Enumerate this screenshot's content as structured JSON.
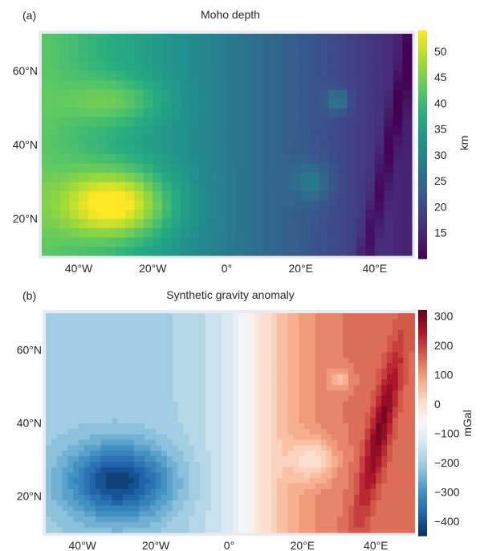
{
  "chart_data": [
    {
      "panel_label": "(a)",
      "type": "heatmap",
      "title": "Moho depth",
      "xlabel": "",
      "ylabel": "",
      "x_tick_labels": [
        "40°W",
        "20°W",
        "0°",
        "20°E",
        "40°E"
      ],
      "x_ticks": [
        -40,
        -20,
        0,
        20,
        40
      ],
      "y_tick_labels": [
        "20°N",
        "40°N",
        "60°N"
      ],
      "y_ticks": [
        20,
        40,
        60
      ],
      "xlim": [
        -50,
        50
      ],
      "ylim": [
        10,
        70
      ],
      "colormap": "viridis",
      "colorbar": {
        "label": "km",
        "range": [
          10,
          54
        ],
        "ticks": [
          15,
          20,
          25,
          30,
          35,
          40,
          45,
          50
        ],
        "tick_labels": [
          "15",
          "20",
          "25",
          "30",
          "35",
          "40",
          "45",
          "50"
        ]
      },
      "field": {
        "base": "depth decreases west to east, ~43 km at 50°W to ~14 km at 40°E",
        "features": [
          {
            "kind": "maximum",
            "lon": -30,
            "lat": 25,
            "value": 54
          },
          {
            "kind": "local maximum",
            "lon": -30,
            "lat": 52,
            "value": 38
          },
          {
            "kind": "local maximum",
            "lon": 23,
            "lat": 30,
            "value": 27
          },
          {
            "kind": "local maximum",
            "lon": 30,
            "lat": 52,
            "value": 28
          },
          {
            "kind": "linear trough",
            "from": [
              38,
              12
            ],
            "to": [
              50,
              68
            ],
            "value": 10
          }
        ]
      }
    },
    {
      "panel_label": "(b)",
      "type": "heatmap",
      "title": "Synthetic gravity anomaly",
      "xlabel": "",
      "ylabel": "",
      "x_tick_labels": [
        "40°W",
        "20°W",
        "0°",
        "20°E",
        "40°E"
      ],
      "x_ticks": [
        -40,
        -20,
        0,
        20,
        40
      ],
      "y_tick_labels": [
        "20°N",
        "40°N",
        "60°N"
      ],
      "y_ticks": [
        20,
        40,
        60
      ],
      "xlim": [
        -50,
        50
      ],
      "ylim": [
        10,
        70
      ],
      "colormap": "RdBu_r (filled contours)",
      "colorbar": {
        "label": "mGal",
        "range": [
          -450,
          320
        ],
        "ticks": [
          300,
          200,
          100,
          0,
          -100,
          -200,
          -300,
          -400
        ],
        "tick_labels": [
          "300",
          "200",
          "100",
          "0",
          "−100",
          "−200",
          "−300",
          "−400"
        ]
      },
      "field": {
        "base": "anomaly increases west to east, ~−200 mGal in the west to ~+150 mGal in the east",
        "features": [
          {
            "kind": "minimum",
            "lon": -30,
            "lat": 25,
            "value": -430
          },
          {
            "kind": "local minimum",
            "lon": -30,
            "lat": 52,
            "value": -90
          },
          {
            "kind": "local minimum",
            "lon": 23,
            "lat": 30,
            "value": 10
          },
          {
            "kind": "local minimum",
            "lon": 30,
            "lat": 52,
            "value": 70
          },
          {
            "kind": "linear ridge",
            "from": [
              36,
              15
            ],
            "to": [
              46,
              60
            ],
            "value": 290
          }
        ]
      }
    }
  ]
}
